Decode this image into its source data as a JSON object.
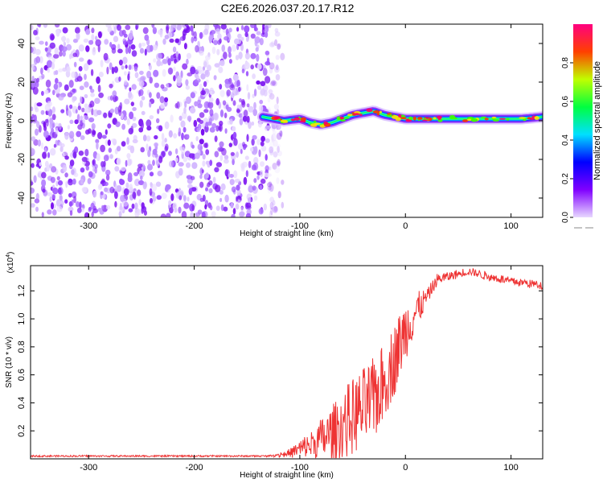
{
  "title": "C2E6.2026.037.20.17.R12",
  "chart_data": [
    {
      "type": "heatmap",
      "name": "spectrogram",
      "xlabel": "Height of straight line (km)",
      "ylabel": "Frequency (Hz)",
      "xlim": [
        -355,
        130
      ],
      "ylim": [
        -50,
        50
      ],
      "x_ticks": [
        -300,
        -200,
        -100,
        0,
        100
      ],
      "y_ticks": [
        -40,
        -20,
        0,
        20,
        40
      ],
      "noise_region_x": [
        -355,
        -130
      ],
      "ridge": {
        "x": [
          -135,
          -125,
          -115,
          -100,
          -90,
          -80,
          -70,
          -60,
          -50,
          -40,
          -30,
          -20,
          -10,
          0,
          20,
          50,
          80,
          110,
          130
        ],
        "y": [
          2,
          1,
          0,
          1,
          -1,
          -2,
          -1,
          1,
          3,
          4,
          5,
          3,
          2,
          1,
          1,
          1,
          1,
          1,
          2
        ]
      },
      "colorbar": {
        "label": "Normalized spectral amplitude",
        "range": [
          0,
          1
        ],
        "ticks": [
          "0.0",
          "0.2",
          "0.4",
          "0.6",
          "0.8"
        ],
        "colors": [
          "#e8d8ff",
          "#8000ff",
          "#0000ff",
          "#00e0ff",
          "#00ff40",
          "#c0ff00",
          "#ff4000",
          "#ff0080"
        ]
      }
    },
    {
      "type": "line",
      "name": "snr",
      "xlabel": "Height of straight line (km)",
      "ylabel": "SNR (10 * v/v)",
      "multiplier_label": "(x10",
      "multiplier_exp": "4",
      "multiplier_close": ")",
      "xlim": [
        -355,
        130
      ],
      "ylim": [
        0,
        1.38
      ],
      "x_ticks": [
        -300,
        -200,
        -100,
        0,
        100
      ],
      "y_ticks": [
        "0.2",
        "0.4",
        "0.6",
        "0.8",
        "1.0",
        "1.2"
      ],
      "color": "#ee3333",
      "envelope": {
        "x": [
          -355,
          -130,
          -110,
          -90,
          -70,
          -50,
          -30,
          -20,
          -10,
          0,
          10,
          20,
          30,
          50,
          60,
          80,
          100,
          130
        ],
        "mean": [
          0.02,
          0.02,
          0.04,
          0.1,
          0.18,
          0.3,
          0.42,
          0.55,
          0.72,
          0.92,
          1.05,
          1.15,
          1.28,
          1.32,
          1.34,
          1.3,
          1.27,
          1.24
        ],
        "spread": [
          0.0,
          0.0,
          0.03,
          0.1,
          0.2,
          0.28,
          0.3,
          0.28,
          0.26,
          0.22,
          0.15,
          0.06,
          0.04,
          0.03,
          0.03,
          0.03,
          0.03,
          0.03
        ]
      }
    }
  ]
}
